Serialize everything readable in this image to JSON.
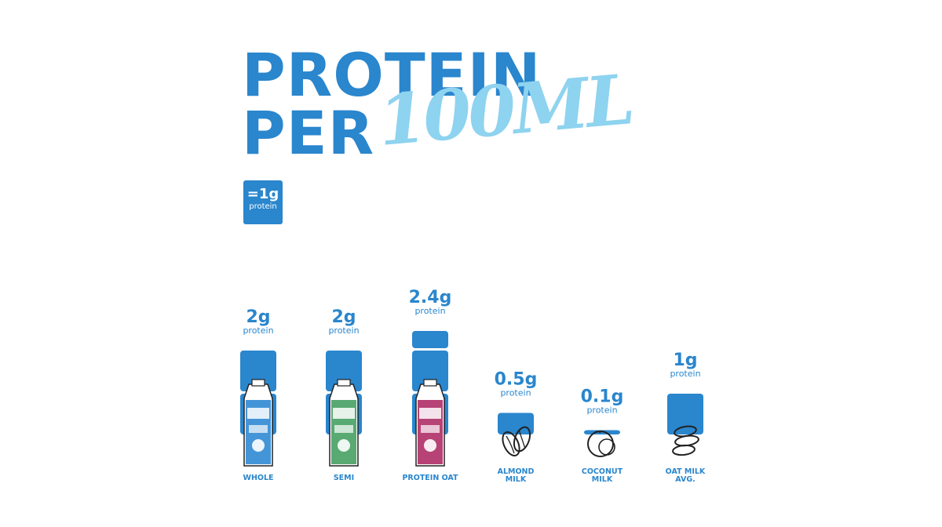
{
  "title": {
    "line1": "PROTEIN",
    "line2": "PER",
    "line2_accent": "100ML"
  },
  "legend": {
    "value": "=1g",
    "label": "protein"
  },
  "colors": {
    "primary": "#2a86cd",
    "accent": "#8ed3ef",
    "whole_carton": "#3a8fd6",
    "semi_carton": "#4fa56a",
    "oat_carton": "#b3386e"
  },
  "chart_data": {
    "type": "bar",
    "unit_label": "protein",
    "categories": [
      {
        "name": "WHOLE",
        "lines": [
          "WHOLE"
        ],
        "value": 2,
        "value_label": "2g",
        "icon": "carton-whole-icon"
      },
      {
        "name": "SEMI",
        "lines": [
          "SEMI"
        ],
        "value": 2,
        "value_label": "2g",
        "icon": "carton-semi-icon"
      },
      {
        "name": "PROTEIN OAT",
        "lines": [
          "PROTEIN OAT"
        ],
        "value": 2.4,
        "value_label": "2.4g",
        "icon": "carton-protein-oat-icon"
      },
      {
        "name": "ALMOND MILK",
        "lines": [
          "ALMOND",
          "MILK"
        ],
        "value": 0.5,
        "value_label": "0.5g",
        "icon": "almond-icon"
      },
      {
        "name": "COCONUT MILK",
        "lines": [
          "COCONUT",
          "MILK"
        ],
        "value": 0.1,
        "value_label": "0.1g",
        "icon": "coconut-icon"
      },
      {
        "name": "OAT MILK AVG.",
        "lines": [
          "OAT MILK",
          "AVG."
        ],
        "value": 1,
        "value_label": "1g",
        "icon": "oat-icon"
      }
    ]
  }
}
